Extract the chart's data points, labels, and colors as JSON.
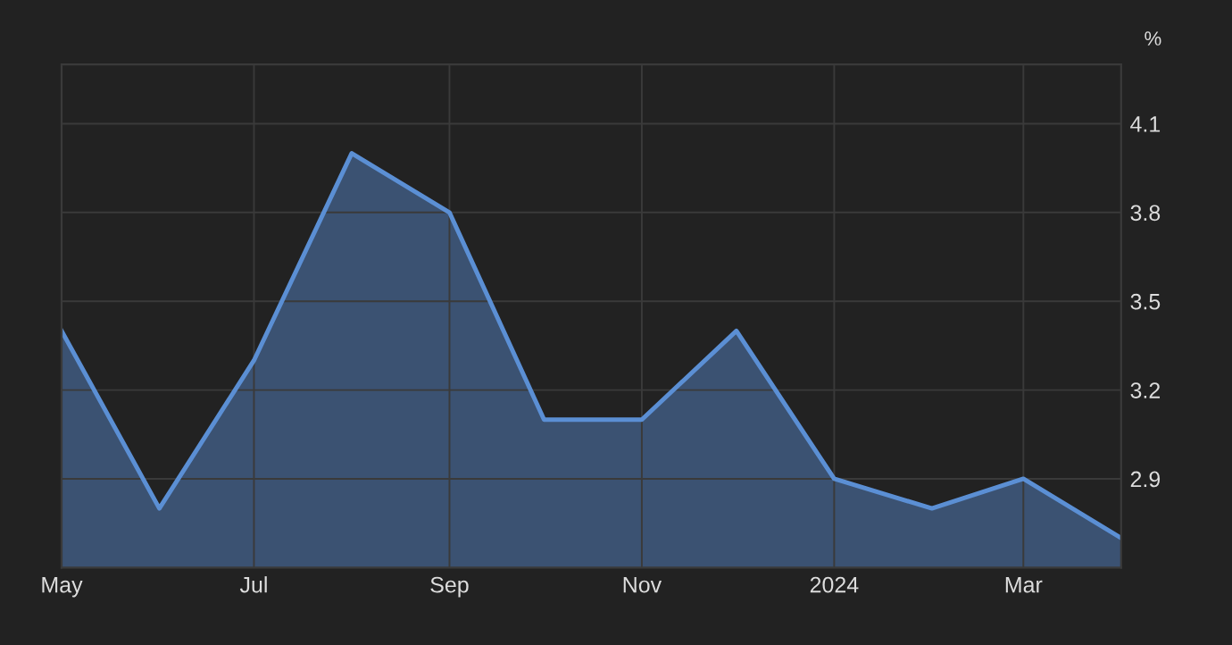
{
  "chart_data": {
    "type": "area",
    "ylabel": "%",
    "x": [
      "2023-05",
      "2023-06",
      "2023-07",
      "2023-08",
      "2023-09",
      "2023-10",
      "2023-11",
      "2023-12",
      "2024-01",
      "2024-02",
      "2024-03",
      "2024-04"
    ],
    "series": [
      {
        "color": "#5b8fd4",
        "values": [
          3.4,
          2.8,
          3.3,
          4.0,
          3.8,
          3.1,
          3.1,
          3.4,
          2.9,
          2.8,
          2.9,
          2.7
        ]
      }
    ],
    "xlim": [
      "2023-05",
      "2024-04"
    ],
    "xticks": [
      {
        "value": "2023-05",
        "label": "May"
      },
      {
        "value": "2023-07",
        "label": "Jul"
      },
      {
        "value": "2023-09",
        "label": "Sep"
      },
      {
        "value": "2023-11",
        "label": "Nov"
      },
      {
        "value": "2024-01",
        "label": "2024"
      },
      {
        "value": "2024-03",
        "label": "Mar"
      }
    ],
    "ylim": [
      2.6,
      4.3
    ],
    "yticks": [
      2.9,
      3.2,
      3.5,
      3.8,
      4.1
    ],
    "grid": true
  }
}
